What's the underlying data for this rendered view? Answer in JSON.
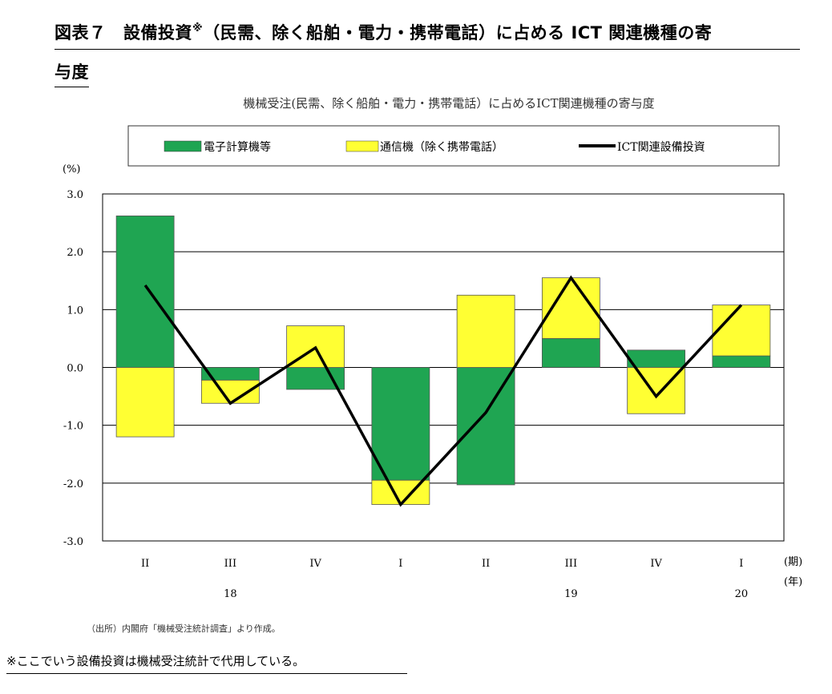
{
  "figure": {
    "title_main": "図表７　設備投資",
    "title_mark": "※",
    "title_rest": "（民需、除く船舶・電力・携帯電話）に占める ICT 関連機種の寄",
    "title_line2": "与度"
  },
  "chart_data": {
    "type": "bar",
    "title": "機械受注(民需、除く船舶・電力・携帯電話）に占めるICT関連機種の寄与度",
    "y_unit": "(%)",
    "ylim": [
      -3.0,
      3.0
    ],
    "y_ticks": [
      "3.0",
      "2.0",
      "1.0",
      "0.0",
      "-1.0",
      "-2.0",
      "-3.0"
    ],
    "categories": [
      "II",
      "III",
      "IV",
      "I",
      "II",
      "III",
      "IV",
      "I"
    ],
    "years": [
      {
        "label": "18",
        "at_category": 1
      },
      {
        "label": "19",
        "at_category": 5
      },
      {
        "label": "20",
        "at_category": 7
      }
    ],
    "period_unit": "(期)",
    "year_unit": "(年)",
    "stacked": true,
    "grid": true,
    "legend_position": "top",
    "series": [
      {
        "name": "電子計算機等",
        "kind": "bar",
        "color": "#1fa552",
        "values": [
          2.62,
          -0.22,
          -0.38,
          -1.95,
          -2.03,
          0.5,
          0.3,
          0.2
        ]
      },
      {
        "name": "通信機（除く携帯電話）",
        "kind": "bar",
        "color": "#ffff33",
        "values": [
          -1.2,
          -0.4,
          0.72,
          -0.42,
          1.25,
          1.05,
          -0.8,
          0.88
        ]
      },
      {
        "name": "ICT関連設備投資",
        "kind": "line",
        "color": "#000000",
        "values": [
          1.42,
          -0.62,
          0.34,
          -2.37,
          -0.78,
          1.55,
          -0.5,
          1.08
        ]
      }
    ]
  },
  "source": "（出所）内閣府「機械受注統計調査」より作成。",
  "note": "※ここでいう設備投資は機械受注統計で代用している。"
}
